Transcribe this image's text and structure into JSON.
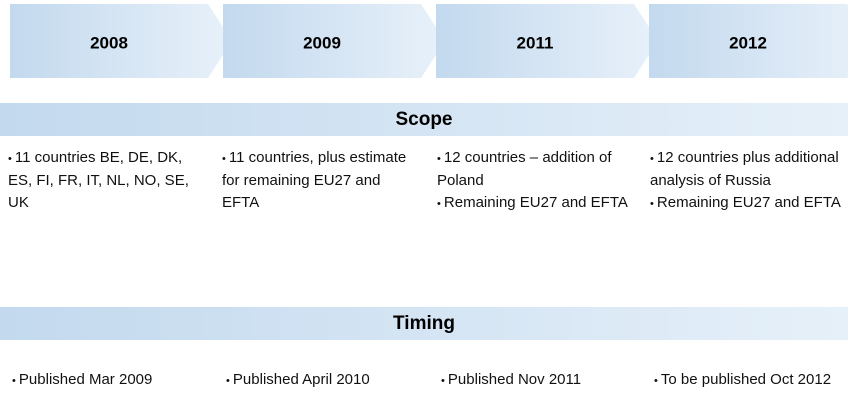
{
  "timeline": [
    "2008",
    "2009",
    "2011",
    "2012"
  ],
  "scope": {
    "title": "Scope",
    "columns": [
      [
        "11 countries  BE, DE, DK, ES, FI, FR, IT, NL, NO, SE, UK"
      ],
      [
        "11 countries, plus estimate for remaining EU27 and EFTA"
      ],
      [
        "12 countries – addition of Poland",
        "Remaining EU27 and EFTA"
      ],
      [
        "12 countries plus additional analysis of Russia",
        "Remaining EU27 and EFTA"
      ]
    ]
  },
  "timing": {
    "title": "Timing",
    "items": [
      "Published Mar 2009",
      "Published April 2010",
      "Published Nov 2011",
      "To be published Oct 2012"
    ]
  }
}
